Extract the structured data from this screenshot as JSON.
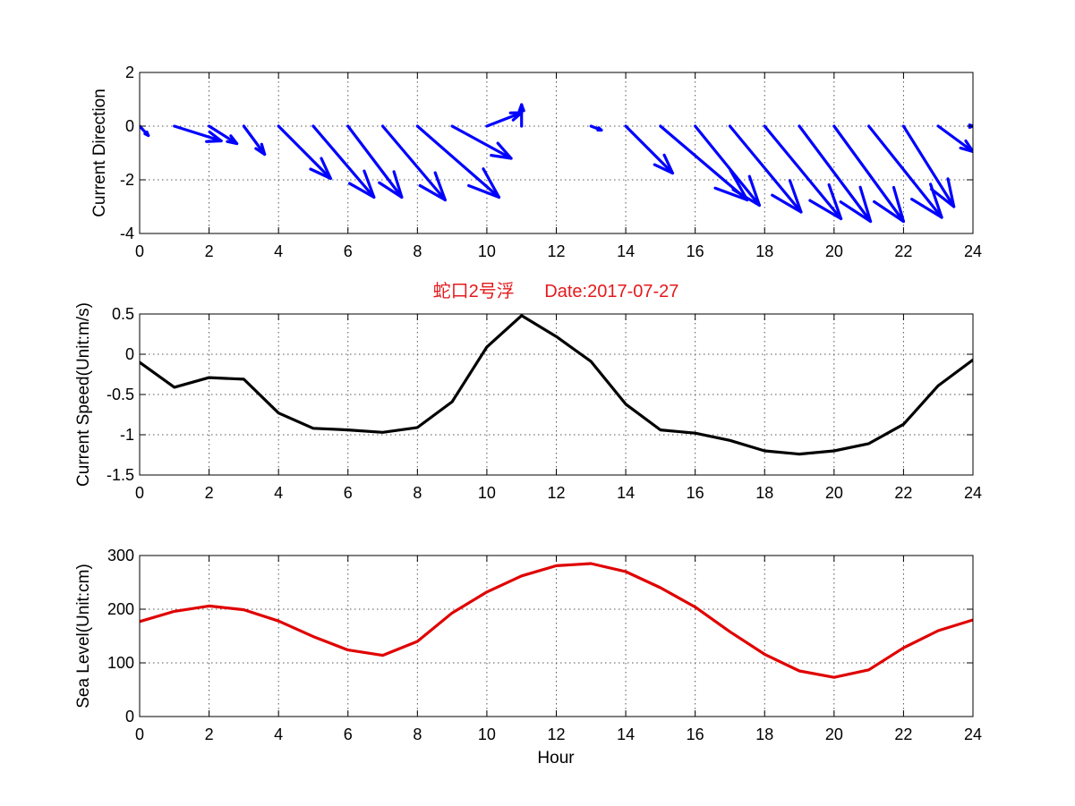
{
  "colors": {
    "title": "#e41a1c",
    "arrows": "#0000ff",
    "speed": "#000000",
    "sea_level": "#e00000"
  },
  "chart_data": [
    {
      "type": "quiver",
      "ylabel": "Current Direction",
      "xlim": [
        0,
        24
      ],
      "ylim": [
        -4,
        2
      ],
      "xticks": [
        0,
        2,
        4,
        6,
        8,
        10,
        12,
        14,
        16,
        18,
        20,
        22,
        24
      ],
      "yticks": [
        -4,
        -2,
        0,
        2
      ],
      "grid": true,
      "vectors": [
        {
          "x": 0,
          "u": 0.25,
          "v": -0.35
        },
        {
          "x": 1,
          "u": 1.35,
          "v": -0.55
        },
        {
          "x": 2,
          "u": 0.8,
          "v": -0.65
        },
        {
          "x": 3,
          "u": 0.6,
          "v": -1.05
        },
        {
          "x": 4,
          "u": 1.5,
          "v": -1.95
        },
        {
          "x": 5,
          "u": 1.75,
          "v": -2.65
        },
        {
          "x": 6,
          "u": 1.55,
          "v": -2.65
        },
        {
          "x": 7,
          "u": 1.8,
          "v": -2.75
        },
        {
          "x": 8,
          "u": 2.35,
          "v": -2.65
        },
        {
          "x": 9,
          "u": 1.7,
          "v": -1.2
        },
        {
          "x": 10,
          "u": 1.0,
          "v": 0.5
        },
        {
          "x": 11,
          "u": 0.0,
          "v": 0.8
        },
        {
          "x": 13,
          "u": 0.3,
          "v": -0.15
        },
        {
          "x": 14,
          "u": 1.35,
          "v": -1.75
        },
        {
          "x": 15,
          "u": 2.5,
          "v": -2.75
        },
        {
          "x": 16,
          "u": 1.85,
          "v": -2.95
        },
        {
          "x": 17,
          "u": 2.05,
          "v": -3.2
        },
        {
          "x": 18,
          "u": 2.2,
          "v": -3.45
        },
        {
          "x": 19,
          "u": 2.05,
          "v": -3.55
        },
        {
          "x": 20,
          "u": 2.0,
          "v": -3.55
        },
        {
          "x": 21,
          "u": 2.1,
          "v": -3.4
        },
        {
          "x": 22,
          "u": 1.45,
          "v": -3.0
        },
        {
          "x": 23,
          "u": 1.0,
          "v": -0.95
        },
        {
          "x": 24,
          "u": 0.0,
          "v": 0.0
        }
      ]
    },
    {
      "type": "line",
      "title_part1": "蛇口2号浮",
      "title_part2": "Date:2017-07-27",
      "ylabel": "Current Speed(Unit:m/s)",
      "xlim": [
        0,
        24
      ],
      "ylim": [
        -1.5,
        0.5
      ],
      "xticks": [
        0,
        2,
        4,
        6,
        8,
        10,
        12,
        14,
        16,
        18,
        20,
        22,
        24
      ],
      "yticks": [
        -1.5,
        -1,
        -0.5,
        0,
        0.5
      ],
      "grid": true,
      "x": [
        0,
        1,
        2,
        3,
        4,
        5,
        6,
        7,
        8,
        9,
        10,
        11,
        12,
        13,
        14,
        15,
        16,
        17,
        18,
        19,
        20,
        21,
        22,
        23,
        24
      ],
      "values": [
        -0.1,
        -0.41,
        -0.29,
        -0.31,
        -0.73,
        -0.92,
        -0.94,
        -0.97,
        -0.91,
        -0.59,
        0.09,
        0.48,
        0.22,
        -0.09,
        -0.62,
        -0.94,
        -0.98,
        -1.07,
        -1.2,
        -1.24,
        -1.2,
        -1.11,
        -0.87,
        -0.39,
        -0.07
      ]
    },
    {
      "type": "line",
      "xlabel": "Hour",
      "ylabel": "Sea Level(Unit:cm)",
      "xlim": [
        0,
        24
      ],
      "ylim": [
        0,
        300
      ],
      "xticks": [
        0,
        2,
        4,
        6,
        8,
        10,
        12,
        14,
        16,
        18,
        20,
        22,
        24
      ],
      "yticks": [
        0,
        100,
        200,
        300
      ],
      "grid": true,
      "x": [
        0,
        1,
        2,
        3,
        4,
        5,
        6,
        7,
        8,
        9,
        10,
        11,
        12,
        13,
        14,
        15,
        16,
        17,
        18,
        19,
        20,
        21,
        22,
        23,
        24
      ],
      "values": [
        177,
        196,
        206,
        199,
        178,
        149,
        124,
        114,
        140,
        193,
        232,
        262,
        281,
        285,
        270,
        240,
        204,
        158,
        116,
        85,
        73,
        87,
        128,
        160,
        180
      ]
    }
  ]
}
